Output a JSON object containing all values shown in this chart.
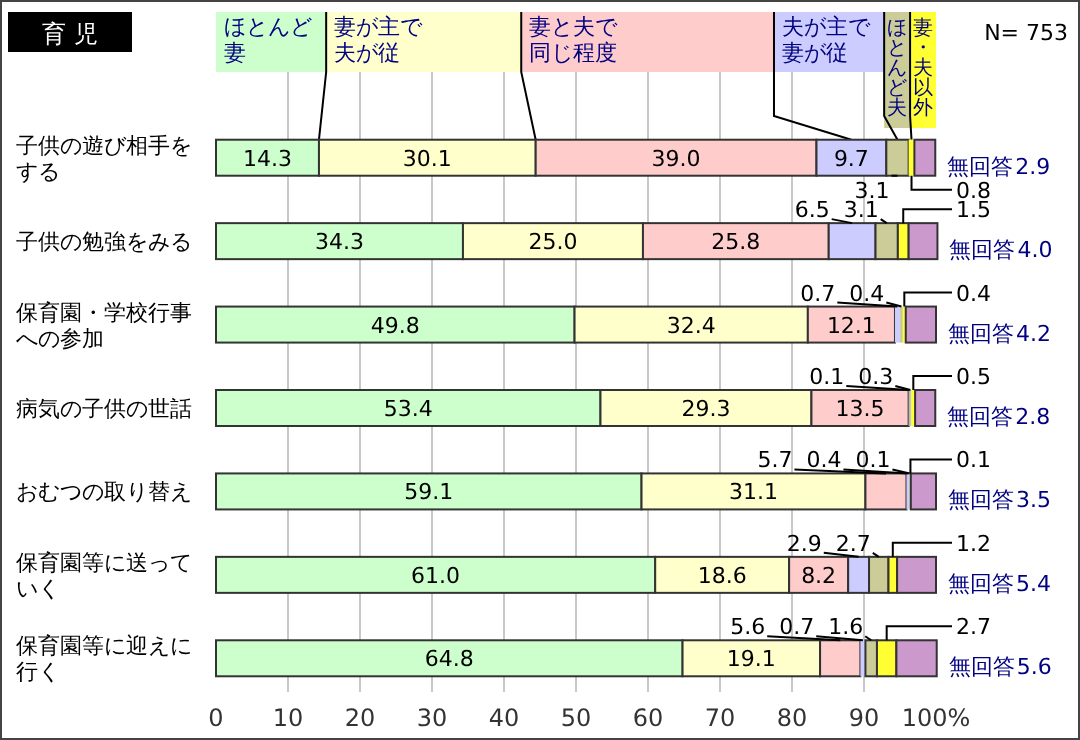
{
  "chart_data": {
    "type": "bar",
    "orientation": "horizontal",
    "stacked": true,
    "title": "育 児",
    "annotations": [
      "N= 753"
    ],
    "categories": [
      "子供の遊び相手をする",
      "子供の勉強をみる",
      "保育園・学校行事への参加",
      "病気の子供の世話",
      "おむつの取り替え",
      "保育園等に送っていく",
      "保育園等に迎えに行く"
    ],
    "series": [
      {
        "name": "ほとんど妻",
        "color": "#ccffcc",
        "values": [
          14.3,
          34.3,
          49.8,
          53.4,
          59.1,
          61.0,
          64.8
        ],
        "value_labels": [
          "14.3",
          "34.3",
          "49.8",
          "53.4",
          "59.1",
          "61.0",
          "64.8"
        ]
      },
      {
        "name": "妻が主で夫が従",
        "color": "#ffffcc",
        "values": [
          30.1,
          25.0,
          32.4,
          29.3,
          31.1,
          18.6,
          19.1
        ],
        "value_labels": [
          "30.1",
          "25.0",
          "32.4",
          "29.3",
          "31.1",
          "18.6",
          "19.1"
        ]
      },
      {
        "name": "妻と夫で同じ程度",
        "color": "#ffcccc",
        "values": [
          39.0,
          25.8,
          12.1,
          13.5,
          5.7,
          8.2,
          5.6
        ],
        "value_labels": [
          "39.0",
          "25.8",
          "12.1",
          "13.5",
          "5.7",
          "8.2",
          "5.6"
        ]
      },
      {
        "name": "夫が主で妻が従",
        "color": "#ccccff",
        "values": [
          9.7,
          6.5,
          0.7,
          0.1,
          0.4,
          2.9,
          0.7
        ],
        "value_labels": [
          "9.7",
          "6.5",
          "0.7",
          "0.1",
          "0.4",
          "2.9",
          "0.7"
        ]
      },
      {
        "name": "ほとんど夫",
        "color": "#cccc99",
        "values": [
          3.1,
          3.1,
          0.4,
          0.3,
          0.1,
          2.7,
          1.6
        ],
        "value_labels": [
          "3.1",
          "3.1",
          "0.4",
          "0.3",
          "0.1",
          "2.7",
          "1.6"
        ]
      },
      {
        "name": "妻・夫以外",
        "color": "#ffff33",
        "values": [
          0.8,
          1.5,
          0.4,
          0.5,
          0.1,
          1.2,
          2.7
        ],
        "value_labels": [
          "0.8",
          "1.5",
          "0.4",
          "0.5",
          "0.1",
          "1.2",
          "2.7"
        ]
      },
      {
        "name": "無回答",
        "color": "#cc99cc",
        "values": [
          2.9,
          4.0,
          4.2,
          2.8,
          3.5,
          5.4,
          5.6
        ],
        "value_labels": [
          "2.9",
          "4.0",
          "4.2",
          "2.8",
          "3.5",
          "5.4",
          "5.6"
        ]
      }
    ],
    "legend": "top",
    "grid": "x",
    "xlim": [
      0,
      100
    ],
    "xticks": [
      0,
      10,
      20,
      30,
      40,
      50,
      60,
      70,
      80,
      90,
      {
        "value": 100,
        "label": "100%"
      }
    ]
  }
}
